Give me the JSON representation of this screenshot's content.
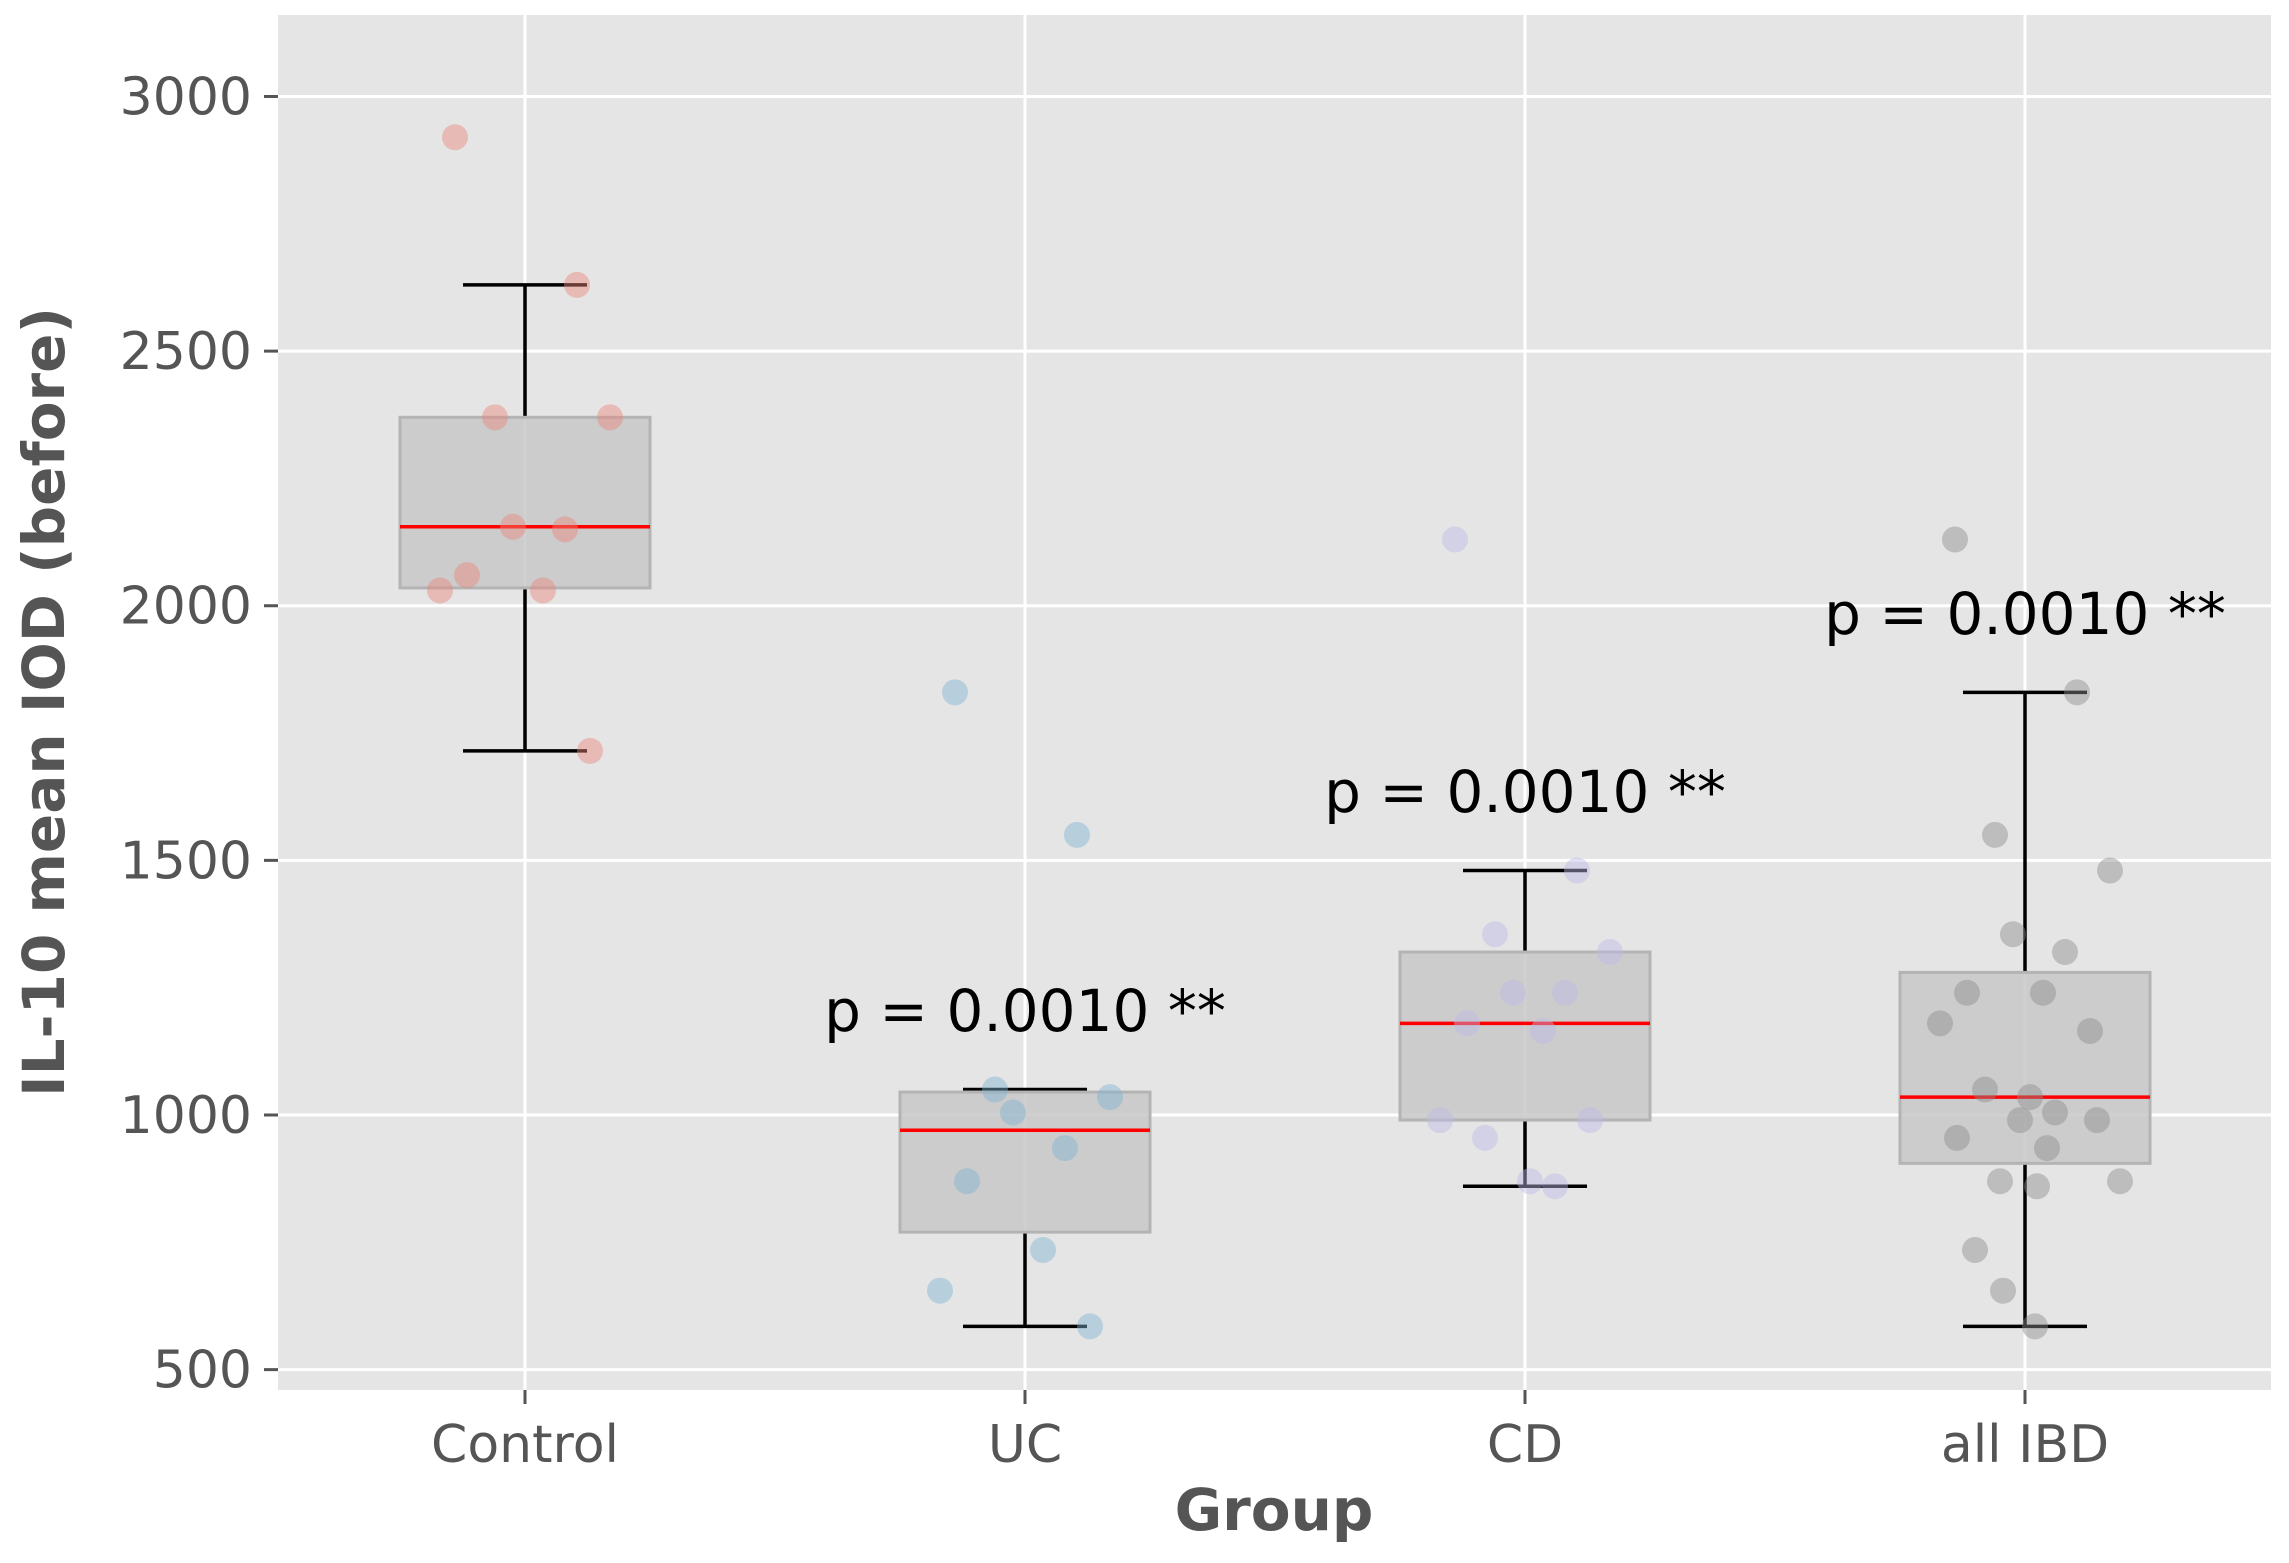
{
  "chart_data": {
    "type": "box",
    "title": "",
    "xlabel": "Group",
    "ylabel": "IL-10 mean IOD (before)",
    "ylim": [
      460,
      3160
    ],
    "yticks": [
      500,
      1000,
      1500,
      2000,
      2500,
      3000
    ],
    "grid": true,
    "categories": [
      "Control",
      "UC",
      "CD",
      "all IBD"
    ],
    "boxes": [
      {
        "category": "Control",
        "whisker_low": 1715,
        "q1": 2035,
        "median": 2155,
        "q3": 2370,
        "whisker_high": 2630,
        "color": "#e8857a",
        "points": [
          2920,
          2630,
          2370,
          2370,
          2155,
          2150,
          2060,
          2030,
          2030,
          1715
        ]
      },
      {
        "category": "UC",
        "whisker_low": 585,
        "q1": 770,
        "median": 970,
        "q3": 1045,
        "whisker_high": 1050,
        "color": "#7fb1d3",
        "points": [
          1830,
          1550,
          1050,
          1035,
          1005,
          935,
          870,
          735,
          655,
          585
        ]
      },
      {
        "category": "CD",
        "whisker_low": 860,
        "q1": 990,
        "median": 1180,
        "q3": 1320,
        "whisker_high": 1480,
        "color": "#bcb8e6",
        "points": [
          2130,
          1480,
          1355,
          1320,
          1240,
          1240,
          1180,
          1165,
          990,
          990,
          955,
          870,
          860
        ]
      },
      {
        "category": "all IBD",
        "whisker_low": 585,
        "q1": 905,
        "median": 1035,
        "q3": 1280,
        "whisker_high": 1830,
        "color": "#8c8c8c",
        "points": [
          2130,
          1830,
          1550,
          1480,
          1355,
          1320,
          1240,
          1240,
          1180,
          1165,
          1050,
          1035,
          1005,
          990,
          990,
          955,
          935,
          870,
          870,
          860,
          735,
          655,
          585
        ]
      }
    ],
    "annotations": [
      {
        "category": "UC",
        "text": "p = 0.0010 **",
        "y": 1165
      },
      {
        "category": "CD",
        "text": "p = 0.0010 **",
        "y": 1595
      },
      {
        "category": "all IBD",
        "text": "p = 0.0010 **",
        "y": 1945
      }
    ],
    "colors": {
      "panel_bg": "#e5e5e5",
      "grid": "#ffffff",
      "box_fill": "#c8c8c8",
      "box_edge": "#b4b4b4",
      "median": "#ff0000",
      "whisker": "#000000"
    }
  }
}
